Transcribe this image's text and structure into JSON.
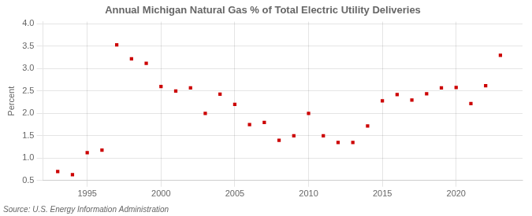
{
  "chart_data": {
    "type": "scatter",
    "title": "Annual Michigan Natural Gas % of Total Electric Utility Deliveries",
    "ylabel": "Percent",
    "annotations": [
      "Source: U.S. Energy Information Administration"
    ],
    "x": [
      1993,
      1994,
      1995,
      1996,
      1997,
      1998,
      1999,
      2000,
      2001,
      2002,
      2003,
      2004,
      2005,
      2006,
      2007,
      2008,
      2009,
      2010,
      2011,
      2012,
      2013,
      2014,
      2015,
      2016,
      2017,
      2018,
      2019,
      2020,
      2021,
      2022,
      2023
    ],
    "values": [
      0.7,
      0.63,
      1.12,
      1.18,
      3.53,
      3.22,
      3.12,
      2.6,
      2.5,
      2.57,
      2.0,
      2.43,
      2.2,
      1.75,
      1.8,
      1.4,
      1.5,
      2.0,
      1.5,
      1.35,
      1.35,
      1.72,
      2.28,
      2.42,
      2.3,
      2.44,
      2.57,
      2.58,
      2.22,
      2.62,
      3.3
    ],
    "color": "#cc0000",
    "marker": "square",
    "xlim": [
      1992,
      2024.5
    ],
    "ylim": [
      0.5,
      4.05
    ],
    "xticks": [
      1995,
      2000,
      2005,
      2010,
      2015,
      2020
    ],
    "yticks": [
      0.5,
      {
        "value": 1.0,
        "label": "1.0"
      },
      1.5,
      {
        "value": 2.0,
        "label": "2.0"
      },
      2.5,
      {
        "value": 3.0,
        "label": "3.0"
      },
      3.5,
      {
        "value": 4.0,
        "label": "4.0"
      }
    ],
    "grid": true
  }
}
